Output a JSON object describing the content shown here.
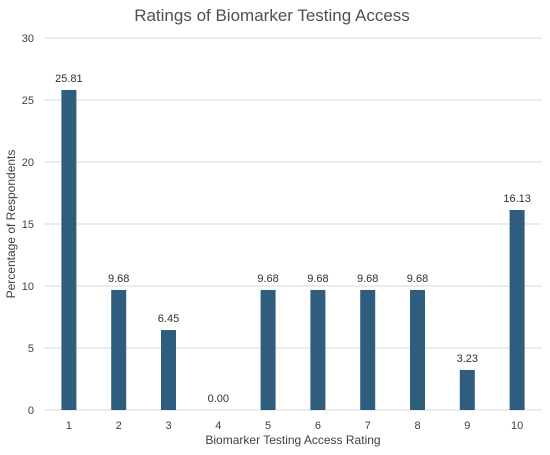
{
  "chart_data": {
    "type": "bar",
    "title": "Ratings of Biomarker Testing Access",
    "xlabel": "Biomarker Testing Access Rating",
    "ylabel": "Percentage of Respondents",
    "categories": [
      "1",
      "2",
      "3",
      "4",
      "5",
      "6",
      "7",
      "8",
      "9",
      "10"
    ],
    "values": [
      25.81,
      9.68,
      6.45,
      0.0,
      9.68,
      9.68,
      9.68,
      9.68,
      3.23,
      16.13
    ],
    "data_labels": [
      "25.81",
      "9.68",
      "6.45",
      "0.00",
      "9.68",
      "9.68",
      "9.68",
      "9.68",
      "3.23",
      "16.13"
    ],
    "ylim": [
      0,
      30
    ],
    "yticks": [
      0,
      5,
      10,
      15,
      20,
      25,
      30
    ],
    "grid": true,
    "bar_color": "#2e5d7e"
  }
}
